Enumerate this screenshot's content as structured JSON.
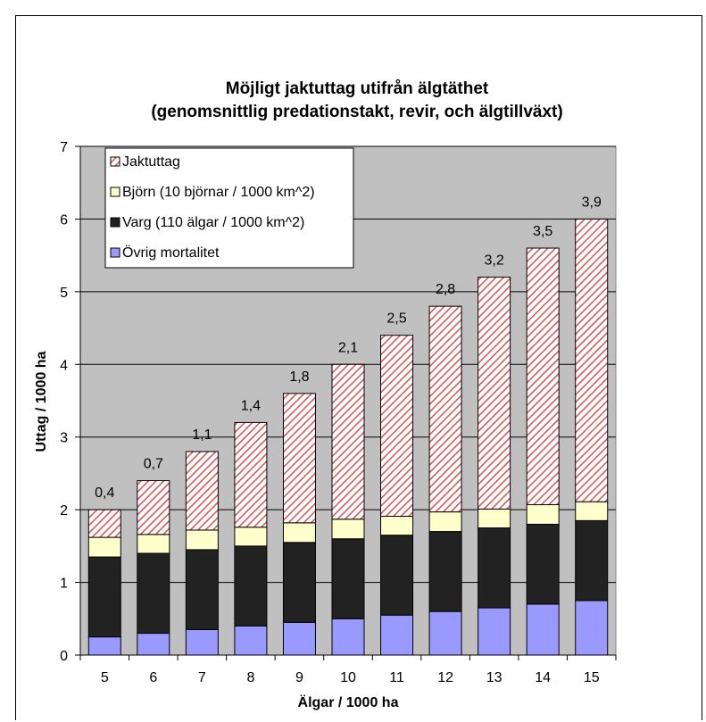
{
  "chart_data": {
    "type": "bar",
    "stacked": true,
    "title_line1": "Möjligt jaktuttag utifrån älgtäthet",
    "title_line2": "(genomsnittlig predationstakt, revir, och älgtillväxt)",
    "xlabel": "Älgar / 1000 ha",
    "ylabel": "Uttag / 1000 ha",
    "ylim": [
      0,
      7
    ],
    "yticks": [
      "0",
      "1",
      "2",
      "3",
      "4",
      "5",
      "6",
      "7"
    ],
    "categories": [
      "5",
      "6",
      "7",
      "8",
      "9",
      "10",
      "11",
      "12",
      "13",
      "14",
      "15"
    ],
    "series": [
      {
        "name": "Övrig mortalitet",
        "color": "#9999ff",
        "values": [
          0.25,
          0.3,
          0.35,
          0.4,
          0.45,
          0.5,
          0.55,
          0.6,
          0.65,
          0.7,
          0.75
        ]
      },
      {
        "name": "Varg (110 älgar / 1000 km^2)",
        "color": "#222222",
        "values": [
          1.1,
          1.1,
          1.1,
          1.1,
          1.1,
          1.1,
          1.1,
          1.1,
          1.1,
          1.1,
          1.1
        ]
      },
      {
        "name": "Björn (10 björnar / 1000 km^2)",
        "color": "#ffffcc",
        "values": [
          0.27,
          0.26,
          0.27,
          0.26,
          0.27,
          0.27,
          0.26,
          0.27,
          0.26,
          0.27,
          0.26
        ]
      },
      {
        "name": "Jaktuttag",
        "color": "#ff9999",
        "pattern": "hatched",
        "values": [
          0.38,
          0.74,
          1.08,
          1.44,
          1.78,
          2.13,
          2.49,
          2.83,
          3.19,
          3.53,
          3.89
        ]
      }
    ],
    "data_labels": [
      "0,4",
      "0,7",
      "1,1",
      "1,4",
      "1,8",
      "2,1",
      "2,5",
      "2,8",
      "3,2",
      "3,5",
      "3,9"
    ],
    "legend_placement": "top-left",
    "legend_order": [
      3,
      2,
      1,
      0
    ],
    "grid": true,
    "plot_background": "#c0c0c0"
  }
}
